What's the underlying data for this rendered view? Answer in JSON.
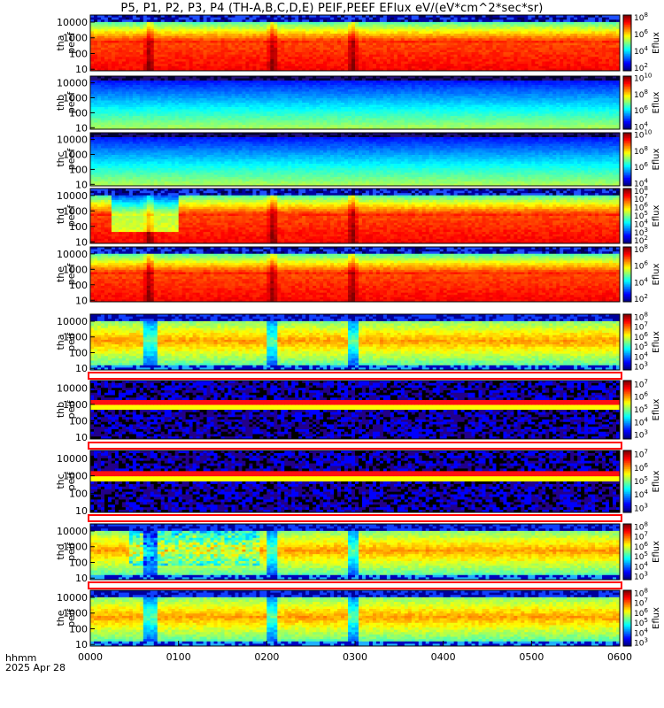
{
  "chart_data": {
    "type": "heatmap",
    "title": "P5, P1, P2, P3, P4 (TH-A,B,C,D,E) PEIF,PEEF EFlux eV/(eV*cm^2*sec*sr)",
    "x_axis": {
      "label_line1": "hhmm",
      "label_line2": "2025 Apr 28",
      "ticks": [
        "0000",
        "0100",
        "0200",
        "0300",
        "0400",
        "0500",
        "0600"
      ],
      "range_hours": [
        0,
        6
      ]
    },
    "y_axis_ticks": [
      "10",
      "100",
      "1000",
      "10000"
    ],
    "colorbar_label": "Eflux",
    "panels": [
      {
        "probe": "tha",
        "species": "peef",
        "cbar_ticks": [
          "10^2",
          "10^4",
          "10^6",
          "10^8"
        ],
        "cbar_exp": [
          2,
          4,
          6,
          8
        ]
      },
      {
        "probe": "thb",
        "species": "peef",
        "cbar_ticks": [
          "10^4",
          "10^6",
          "10^8",
          "10^10"
        ],
        "cbar_exp": [
          4,
          6,
          8,
          10
        ]
      },
      {
        "probe": "thc",
        "species": "peef",
        "cbar_ticks": [
          "10^4",
          "10^6",
          "10^8",
          "10^10"
        ],
        "cbar_exp": [
          4,
          6,
          8,
          10
        ]
      },
      {
        "probe": "thd",
        "species": "peef",
        "cbar_ticks": [
          "10^2",
          "10^3",
          "10^4",
          "10^5",
          "10^6",
          "10^7",
          "10^8"
        ],
        "cbar_exp": [
          2,
          3,
          4,
          5,
          6,
          7,
          8
        ]
      },
      {
        "probe": "the",
        "species": "peef",
        "cbar_ticks": [
          "10^2",
          "10^4",
          "10^6",
          "10^8"
        ],
        "cbar_exp": [
          2,
          4,
          6,
          8
        ]
      },
      {
        "probe": "tha",
        "species": "peif",
        "cbar_ticks": [
          "10^3",
          "10^4",
          "10^5",
          "10^6",
          "10^7",
          "10^8"
        ],
        "cbar_exp": [
          3,
          4,
          5,
          6,
          7,
          8
        ]
      },
      {
        "probe": "thb",
        "species": "peif",
        "cbar_ticks": [
          "10^3",
          "10^4",
          "10^5",
          "10^6",
          "10^7"
        ],
        "cbar_exp": [
          3,
          4,
          5,
          6,
          7
        ]
      },
      {
        "probe": "thc",
        "species": "peif",
        "cbar_ticks": [
          "10^3",
          "10^4",
          "10^5",
          "10^6",
          "10^7"
        ],
        "cbar_exp": [
          3,
          4,
          5,
          6,
          7
        ]
      },
      {
        "probe": "thd",
        "species": "peif",
        "cbar_ticks": [
          "10^3",
          "10^4",
          "10^5",
          "10^6",
          "10^7",
          "10^8"
        ],
        "cbar_exp": [
          3,
          4,
          5,
          6,
          7,
          8
        ]
      },
      {
        "probe": "the",
        "species": "peif",
        "cbar_ticks": [
          "10^3",
          "10^4",
          "10^5",
          "10^6",
          "10^7",
          "10^8"
        ],
        "cbar_exp": [
          3,
          4,
          5,
          6,
          7,
          8
        ]
      }
    ]
  }
}
